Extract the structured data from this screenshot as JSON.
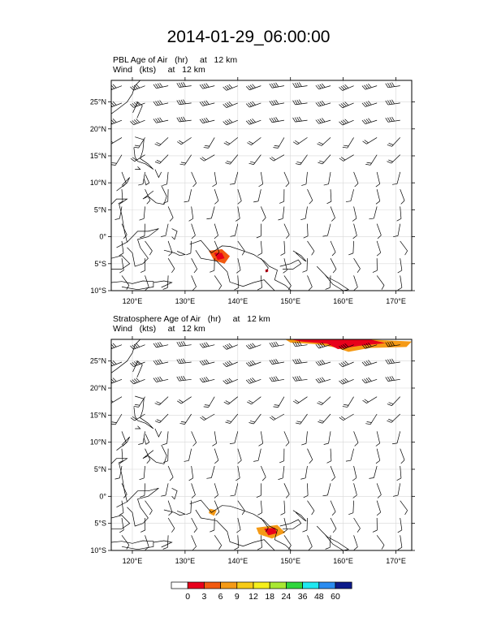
{
  "title": "2014-01-29_06:00:00",
  "panels": [
    {
      "line1": "PBL Age of Air   (hr)     at   12 km",
      "line2": "Wind   (kts)     at   12 km",
      "field": "pbl"
    },
    {
      "line1": "Stratosphere Age of Air   (hr)     at   12 km",
      "line2": "Wind   (kts)     at   12 km",
      "field": "strat"
    }
  ],
  "lon_ticks": [
    "120°E",
    "130°E",
    "140°E",
    "150°E",
    "160°E",
    "170°E"
  ],
  "lat_ticks": [
    "25°N",
    "20°N",
    "15°N",
    "10°N",
    "5°N",
    "0°",
    "5°S",
    "10°S"
  ],
  "colorbar": {
    "labels": [
      "0",
      "3",
      "6",
      "9",
      "12",
      "18",
      "24",
      "36",
      "48",
      "60"
    ],
    "colors": [
      "#ffffff",
      "#e8001b",
      "#f25a10",
      "#f59a16",
      "#f7cb17",
      "#f5ef1c",
      "#a8e832",
      "#2fd63c",
      "#1fe8f0",
      "#2a8cf0",
      "#0c1a8a"
    ]
  },
  "map_extent": {
    "lon": [
      116,
      173
    ],
    "lat": [
      -10,
      29
    ]
  }
}
